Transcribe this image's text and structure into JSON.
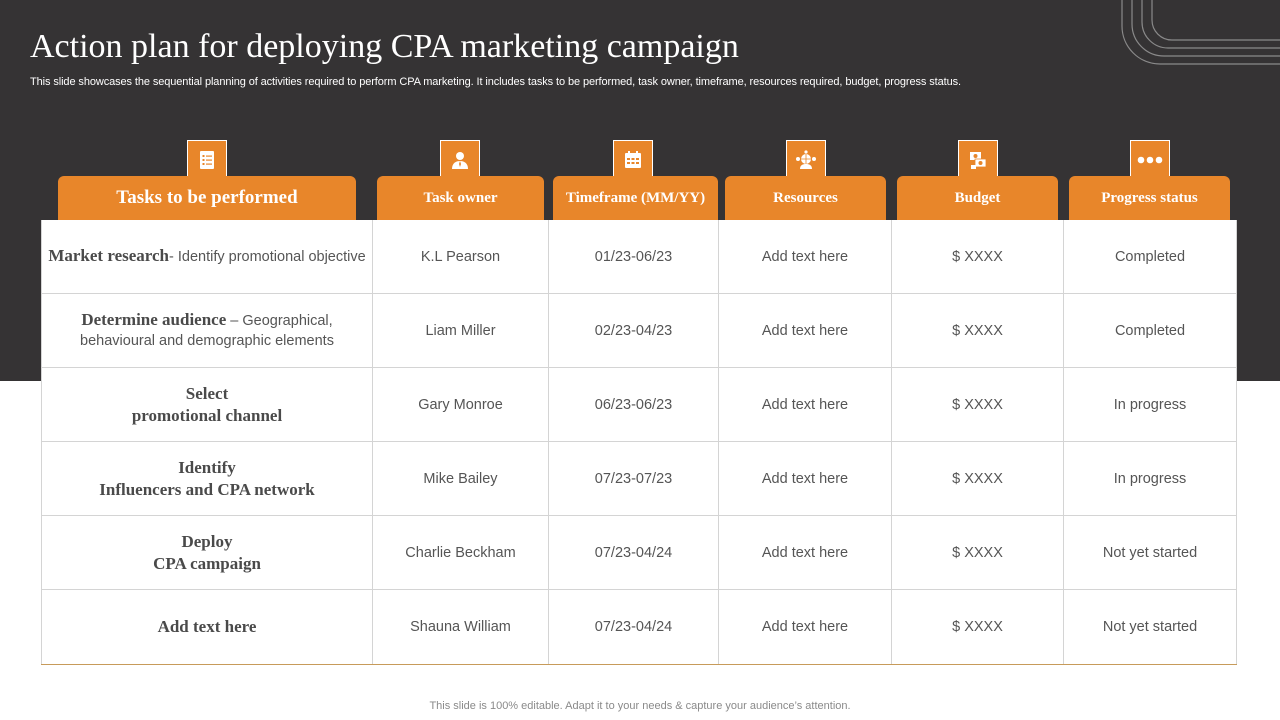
{
  "title": "Action plan for deploying CPA marketing campaign",
  "subtitle": "This slide showcases the sequential planning of activities required to perform CPA marketing. It includes tasks to be performed, task owner, timeframe, resources required, budget, progress status.",
  "accent_color": "#e8862a",
  "background_color": "#353334",
  "columns": [
    {
      "label": "Tasks to be performed",
      "icon": "checklist-icon"
    },
    {
      "label": "Task owner",
      "icon": "person-icon"
    },
    {
      "label": "Timeframe (MM/YY)",
      "icon": "calendar-icon"
    },
    {
      "label": "Resources",
      "icon": "globe-people-icon"
    },
    {
      "label": "Budget",
      "icon": "money-icon"
    },
    {
      "label": "Progress status",
      "icon": "dots-icon"
    }
  ],
  "rows": [
    {
      "task_bold": "Market research",
      "task_desc": "- Identify promotional objective",
      "owner": "K.L Pearson",
      "timeframe": "01/23-06/23",
      "resources": "Add text here",
      "budget": "$ XXXX",
      "status": "Completed"
    },
    {
      "task_bold": "Determine audience",
      "task_desc": " – Geographical, behavioural and demographic elements",
      "owner": "Liam Miller",
      "timeframe": "02/23-04/23",
      "resources": "Add text here",
      "budget": "$ XXXX",
      "status": "Completed"
    },
    {
      "task_line1": "Select",
      "task_line2": "promotional channel",
      "owner": "Gary Monroe",
      "timeframe": "06/23-06/23",
      "resources": "Add text here",
      "budget": "$ XXXX",
      "status": "In progress"
    },
    {
      "task_line1": "Identify",
      "task_line2": "Influencers and CPA network",
      "owner": "Mike Bailey",
      "timeframe": "07/23-07/23",
      "resources": "Add text here",
      "budget": "$ XXXX",
      "status": "In progress"
    },
    {
      "task_line1": "Deploy",
      "task_line2": "CPA campaign",
      "owner": "Charlie Beckham",
      "timeframe": "07/23-04/24",
      "resources": "Add text here",
      "budget": "$ XXXX",
      "status": "Not yet started"
    },
    {
      "task_line1": "Add text here",
      "owner": "Shauna William",
      "timeframe": "07/23-04/24",
      "resources": "Add text here",
      "budget": "$ XXXX",
      "status": "Not yet started"
    }
  ],
  "footer": "This slide is 100% editable. Adapt it to your needs & capture your audience’s attention."
}
